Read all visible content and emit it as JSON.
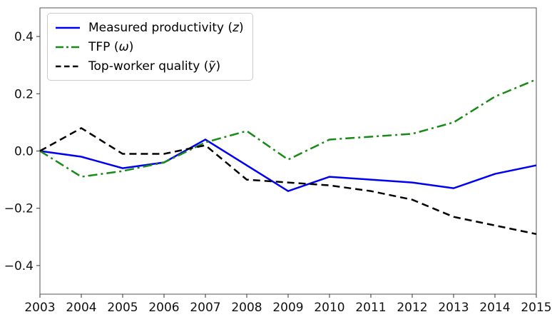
{
  "figure": {
    "background": "#ffffff",
    "spine_color": "#555555",
    "tick_color": "#333333",
    "tick_label_color": "#111111",
    "tick_font_px": 17,
    "legend_border_color": "#cccccc"
  },
  "chart_data": {
    "type": "line",
    "title": "",
    "xlabel": "",
    "ylabel": "",
    "grid": false,
    "legend_position": "upper-left",
    "xlim": [
      2003,
      2015
    ],
    "ylim": [
      -0.5,
      0.5
    ],
    "x": [
      2003,
      2004,
      2005,
      2006,
      2007,
      2008,
      2009,
      2010,
      2011,
      2012,
      2013,
      2014,
      2015
    ],
    "xtick_labels": [
      "2003",
      "2004",
      "2005",
      "2006",
      "2007",
      "2008",
      "2009",
      "2010",
      "2011",
      "2012",
      "2013",
      "2014",
      "2015"
    ],
    "yticks": [
      0.4,
      0.2,
      0.0,
      -0.2,
      -0.4
    ],
    "ytick_labels": [
      "0.4",
      "0.2",
      "0.0",
      "−0.2",
      "−0.4"
    ],
    "series": [
      {
        "name": "Measured productivity (z)",
        "label_prefix": "Measured productivity (",
        "label_math": "z",
        "label_suffix": ")",
        "color": "#0000f0",
        "line_style": "solid",
        "values": [
          0.0,
          -0.02,
          -0.06,
          -0.04,
          0.04,
          -0.05,
          -0.14,
          -0.09,
          -0.1,
          -0.11,
          -0.13,
          -0.08,
          -0.05
        ]
      },
      {
        "name": "TFP (ω)",
        "label_prefix": "TFP (",
        "label_math": "ω",
        "label_suffix": ")",
        "color": "#188a18",
        "line_style": "dashdot",
        "values": [
          0.0,
          -0.09,
          -0.07,
          -0.04,
          0.03,
          0.07,
          -0.03,
          0.04,
          0.05,
          0.06,
          0.1,
          0.19,
          0.25
        ]
      },
      {
        "name": "Top-worker quality (ỹ)",
        "label_prefix": "Top-worker quality (",
        "label_math": "ỹ",
        "label_suffix": ")",
        "color": "#000000",
        "line_style": "dashed",
        "values": [
          0.0,
          0.08,
          -0.01,
          -0.01,
          0.02,
          -0.1,
          -0.11,
          -0.12,
          -0.14,
          -0.17,
          -0.23,
          -0.26,
          -0.29
        ]
      }
    ]
  }
}
